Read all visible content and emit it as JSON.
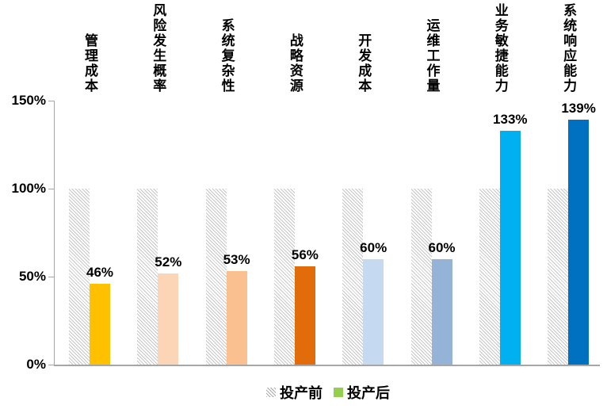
{
  "chart_data": {
    "type": "bar",
    "title": "",
    "categories": [
      "管理成本",
      "风险发生概率",
      "系统复杂性",
      "战略资源",
      "开发成本",
      "运维工作量",
      "业务敏捷能力",
      "系统响应能力"
    ],
    "series": [
      {
        "name": "投产前",
        "values": [
          100,
          100,
          100,
          100,
          100,
          100,
          100,
          100
        ],
        "style": "hatched-gray"
      },
      {
        "name": "投产后",
        "values": [
          46,
          52,
          53,
          56,
          60,
          60,
          133,
          139
        ],
        "value_labels": [
          "46%",
          "52%",
          "53%",
          "56%",
          "60%",
          "60%",
          "133%",
          "139%"
        ],
        "colors": [
          "#FFC000",
          "#FBD5B5",
          "#FAC090",
          "#E36C0A",
          "#C5D9F1",
          "#95B3D7",
          "#00B0F0",
          "#0070C0"
        ]
      }
    ],
    "y_axis": {
      "ticks": [
        "0%",
        "50%",
        "100%",
        "150%"
      ],
      "tick_values": [
        0,
        50,
        100,
        150
      ],
      "min": 0,
      "max": 150,
      "grid": false
    },
    "legend": {
      "position": "bottom",
      "items": [
        {
          "label": "投产前",
          "swatch": "hatched",
          "color": null
        },
        {
          "label": "投产后",
          "swatch": "solid",
          "color": "#92D050"
        }
      ]
    }
  },
  "colors": {
    "axis": "#A6A6A6",
    "hatch_line": "#C6C6C6",
    "background": "#FFFFFF",
    "text": "#000000"
  }
}
